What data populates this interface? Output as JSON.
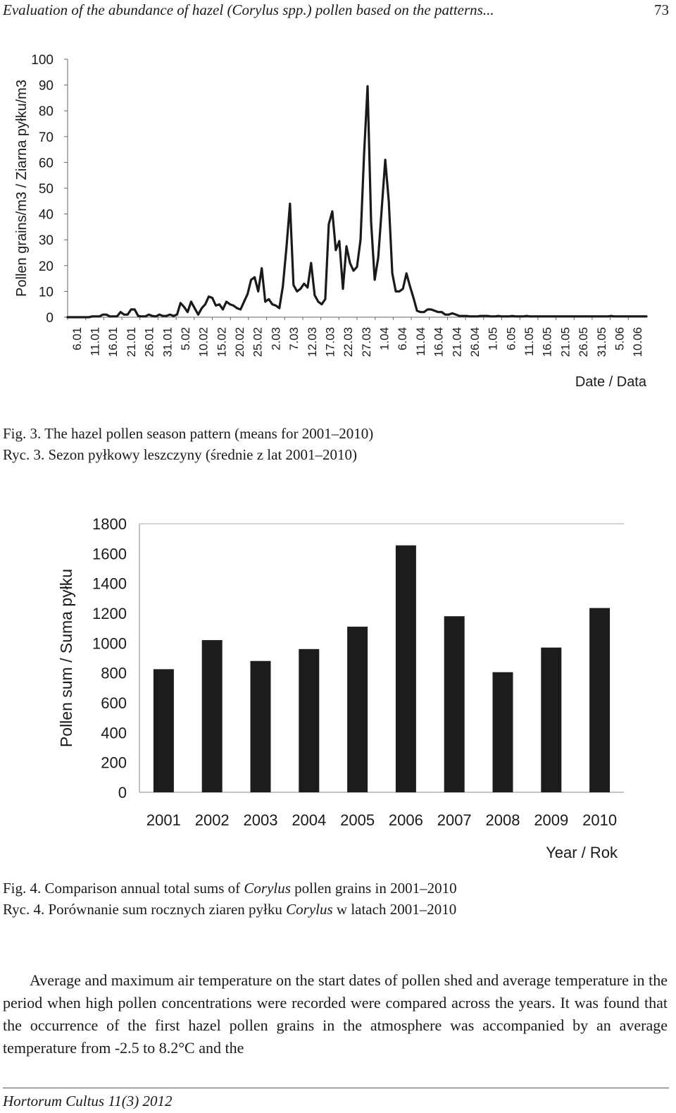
{
  "header": {
    "running_title": "Evaluation of the abundance of hazel (Corylus spp.) pollen based on the patterns...",
    "page_number": "73"
  },
  "figure3": {
    "caption_en": "Fig. 3. The hazel pollen season pattern (means for 2001–2010)",
    "caption_pl": "Ryc. 3. Sezon pyłkowy leszczyny (średnie z lat 2001–2010)"
  },
  "figure4": {
    "caption_en_prefix": "Fig. 4. Comparison annual total sums of ",
    "caption_en_italic": "Corylus",
    "caption_en_suffix": " pollen grains in 2001–2010",
    "caption_pl_prefix": "Ryc. 4. Porównanie sum rocznych ziaren pyłku ",
    "caption_pl_italic": "Corylus",
    "caption_pl_suffix": " w latach 2001–2010"
  },
  "chart_data": [
    {
      "type": "line",
      "ylabel": "Pollen grains/m3 / Ziarna pyłku/m3",
      "xlabel": "Date / Data",
      "ylim": [
        0,
        100
      ],
      "yticks": [
        0,
        10,
        20,
        30,
        40,
        50,
        60,
        70,
        80,
        90,
        100
      ],
      "x_tick_labels": [
        "6.01",
        "11.01",
        "16.01",
        "21.01",
        "26.01",
        "31.01",
        "5.02",
        "10.02",
        "15.02",
        "20.02",
        "25.02",
        "2.03",
        "7.03",
        "12.03",
        "17.03",
        "22.03",
        "27.03",
        "1.04",
        "6.04",
        "11.04",
        "16.04",
        "21.04",
        "26.04",
        "1.05",
        "6.05",
        "11.05",
        "16.05",
        "21.05",
        "26.05",
        "31.05",
        "5.06",
        "10.06"
      ],
      "grid": false,
      "series": [
        {
          "color": "#1a1a1a",
          "values": [
            0,
            0,
            0,
            0,
            0,
            0,
            0,
            0.3,
            0.3,
            0.3,
            1,
            1,
            0.3,
            0.3,
            0.3,
            2,
            1,
            1,
            3,
            3,
            0.5,
            0.3,
            0.3,
            1,
            0.5,
            0.3,
            1,
            0.5,
            0.5,
            1,
            0.5,
            1,
            5.5,
            4,
            2,
            6,
            3.5,
            1,
            3.5,
            5,
            8,
            7.5,
            4.5,
            5,
            3,
            6,
            5,
            4.5,
            3.5,
            3,
            6,
            9,
            14.5,
            15.5,
            10,
            19,
            6,
            7,
            5,
            4.5,
            3.5,
            12,
            27,
            44,
            12.5,
            10,
            11,
            13,
            11.5,
            21,
            8.5,
            6,
            5,
            7,
            36,
            41,
            26,
            29.5,
            11,
            27.5,
            21,
            18,
            19.5,
            30,
            63,
            89.5,
            37,
            14.5,
            23,
            42,
            61,
            45,
            17,
            10,
            10,
            11,
            17,
            12,
            7.5,
            2.5,
            2,
            2,
            3,
            3,
            2.5,
            2,
            2,
            1,
            1,
            1.5,
            1,
            0.5,
            0.5,
            0.5,
            0.3,
            0.3,
            0.3,
            0.5,
            0.5,
            0.5,
            0.3,
            0.3,
            0.5,
            0.3,
            0.3,
            0.3,
            0.5,
            0.3,
            0.3,
            0.3,
            0.5,
            0.3,
            0.3,
            0.3,
            0.3,
            0.3,
            0.3,
            0.3,
            0.3,
            0.3,
            0.3,
            0.3,
            0.3,
            0.3,
            0.3,
            0.3,
            0.3,
            0.3,
            0.3,
            0.3,
            0.3,
            0.3,
            0.3,
            0.3,
            0.5,
            0.3,
            0.3,
            0.3,
            0.3,
            0.3,
            0.3,
            0.3,
            0.3,
            0.3,
            0.3
          ]
        }
      ]
    },
    {
      "type": "bar",
      "ylabel": "Pollen sum / Suma pyłku",
      "xlabel": "Year / Rok",
      "ylim": [
        0,
        1800
      ],
      "yticks": [
        0,
        200,
        400,
        600,
        800,
        1000,
        1200,
        1400,
        1600,
        1800
      ],
      "categories": [
        "2001",
        "2002",
        "2003",
        "2004",
        "2005",
        "2006",
        "2007",
        "2008",
        "2009",
        "2010"
      ],
      "values": [
        825,
        1020,
        880,
        960,
        1110,
        1655,
        1180,
        805,
        970,
        1235
      ],
      "bar_color": "#1c1c1c",
      "grid": false
    }
  ],
  "body": {
    "paragraph": "Average and maximum air temperature on the start dates of pollen shed and average temperature in the period when high pollen concentrations were recorded were compared across the years. It was found that the occurrence of the first hazel pollen grains in the atmosphere was accompanied by an average temperature from -2.5 to 8.2°C and the"
  },
  "footer": {
    "journal": "Hortorum Cultus 11(3) 2012"
  }
}
